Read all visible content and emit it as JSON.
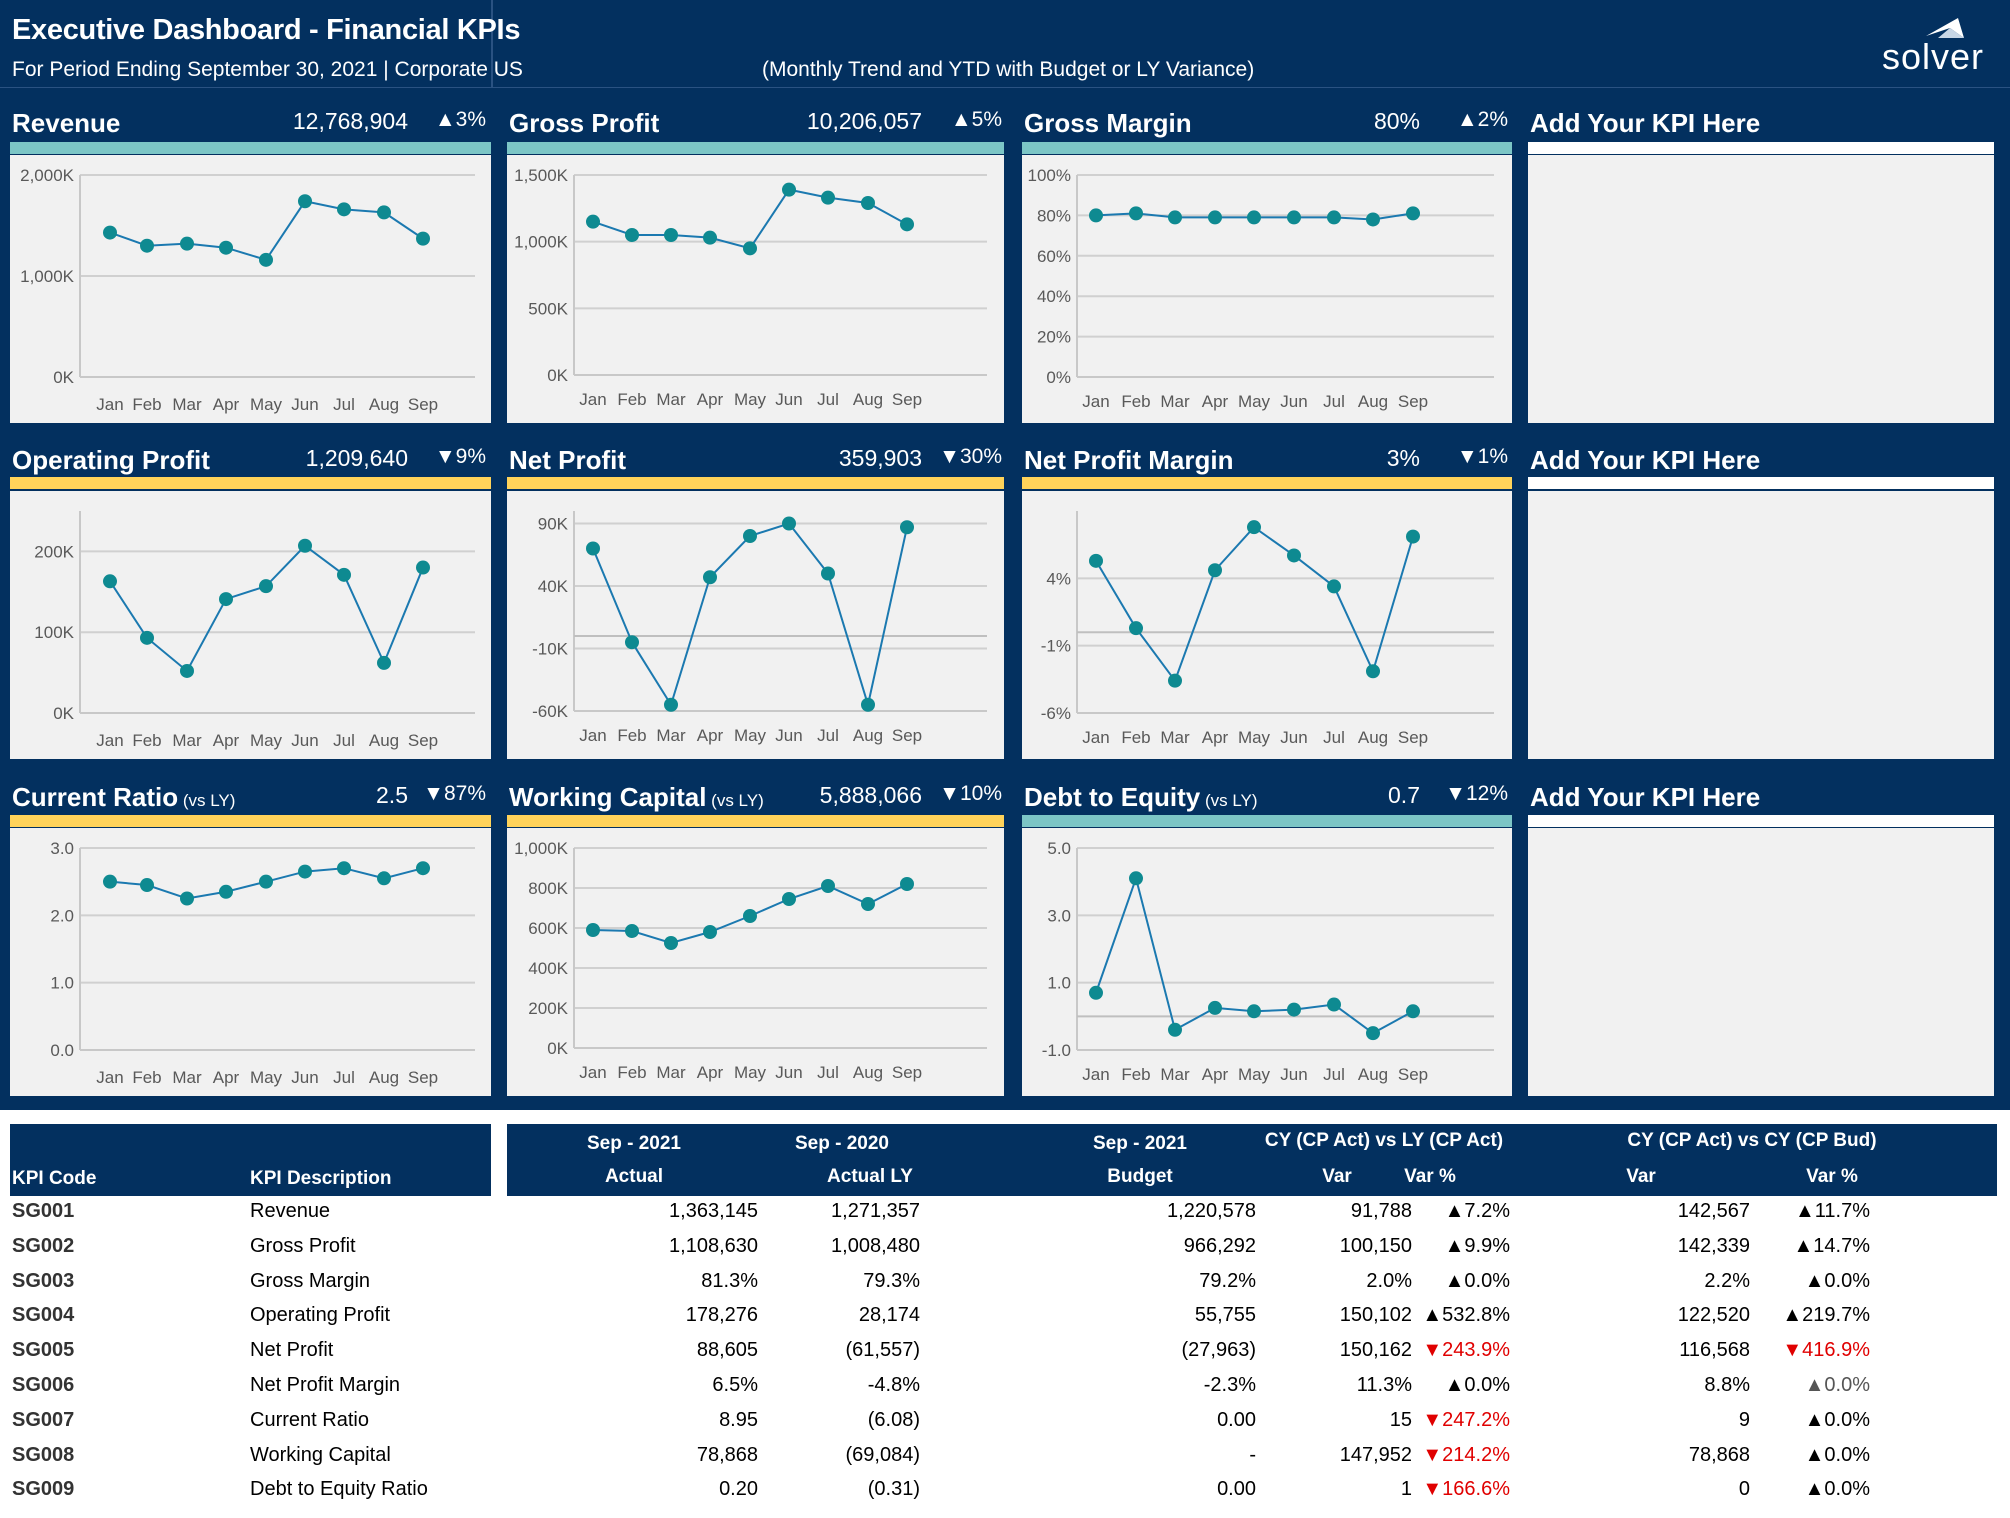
{
  "header": {
    "title": "Executive Dashboard - Financial KPIs",
    "subtitle": "For Period Ending September 30, 2021 | Corporate US",
    "subtitle2": "(Monthly Trend and YTD with Budget or LY Variance)",
    "logo": "solver"
  },
  "colors": {
    "navy": "#03305f",
    "teal_band": "#7cc6c6",
    "yellow_band": "#ffd35a",
    "series_line": "#1b79b0",
    "marker": "#0e8a91",
    "negative": "#e00000"
  },
  "kpis": [
    {
      "name": "Revenue",
      "suffix": "",
      "value": "12,768,904",
      "var": "▲3%"
    },
    {
      "name": "Gross Profit",
      "suffix": "",
      "value": "10,206,057",
      "var": "▲5%"
    },
    {
      "name": "Gross Margin",
      "suffix": "",
      "value": "80%",
      "var": "▲2%"
    },
    {
      "name": "Add Your KPI Here",
      "suffix": "",
      "value": "",
      "var": ""
    },
    {
      "name": "Operating Profit",
      "suffix": "",
      "value": "1,209,640",
      "var": "▼9%"
    },
    {
      "name": "Net Profit",
      "suffix": "",
      "value": "359,903",
      "var": "▼30%"
    },
    {
      "name": "Net Profit Margin",
      "suffix": "",
      "value": "3%",
      "var": "▼1%"
    },
    {
      "name": "Add Your KPI Here",
      "suffix": "",
      "value": "",
      "var": ""
    },
    {
      "name": "Current Ratio",
      "suffix": "(vs LY)",
      "value": "2.5",
      "var": "▼87%"
    },
    {
      "name": "Working Capital",
      "suffix": "(vs LY)",
      "value": "5,888,066",
      "var": "▼10%"
    },
    {
      "name": "Debt to Equity",
      "suffix": "(vs LY)",
      "value": "0.7",
      "var": "▼12%"
    },
    {
      "name": "Add Your KPI Here",
      "suffix": "",
      "value": "",
      "var": ""
    }
  ],
  "chart_data": [
    {
      "type": "line",
      "title": "Revenue",
      "x": [
        "Jan",
        "Feb",
        "Mar",
        "Apr",
        "May",
        "Jun",
        "Jul",
        "Aug",
        "Sep"
      ],
      "values": [
        1430,
        1300,
        1320,
        1280,
        1160,
        1740,
        1660,
        1630,
        1370
      ],
      "ylim": [
        0,
        2000
      ],
      "yticks": [
        0,
        1000,
        2000
      ],
      "yticklabels": [
        "0K",
        "1,000K",
        "2,000K"
      ],
      "grid": true
    },
    {
      "type": "line",
      "title": "Gross Profit",
      "x": [
        "Jan",
        "Feb",
        "Mar",
        "Apr",
        "May",
        "Jun",
        "Jul",
        "Aug",
        "Sep"
      ],
      "values": [
        1150,
        1050,
        1050,
        1030,
        950,
        1390,
        1330,
        1290,
        1130
      ],
      "ylim": [
        0,
        1500
      ],
      "yticks": [
        0,
        500,
        1000,
        1500
      ],
      "yticklabels": [
        "0K",
        "500K",
        "1,000K",
        "1,500K"
      ],
      "grid": true
    },
    {
      "type": "line",
      "title": "Gross Margin",
      "x": [
        "Jan",
        "Feb",
        "Mar",
        "Apr",
        "May",
        "Jun",
        "Jul",
        "Aug",
        "Sep"
      ],
      "values": [
        80,
        81,
        79,
        79,
        79,
        79,
        79,
        78,
        81
      ],
      "ylim": [
        0,
        100
      ],
      "yticks": [
        0,
        20,
        40,
        60,
        80,
        100
      ],
      "yticklabels": [
        "0%",
        "20%",
        "40%",
        "60%",
        "80%",
        "100%"
      ],
      "grid": true
    },
    {
      "type": "line",
      "title": "Operating Profit",
      "x": [
        "Jan",
        "Feb",
        "Mar",
        "Apr",
        "May",
        "Jun",
        "Jul",
        "Aug",
        "Sep"
      ],
      "values": [
        163,
        93,
        52,
        141,
        157,
        207,
        171,
        62,
        180
      ],
      "ylim": [
        0,
        250
      ],
      "yticks": [
        0,
        100,
        200
      ],
      "yticklabels": [
        "0K",
        "100K",
        "200K"
      ],
      "grid": true
    },
    {
      "type": "line",
      "title": "Net Profit",
      "x": [
        "Jan",
        "Feb",
        "Mar",
        "Apr",
        "May",
        "Jun",
        "Jul",
        "Aug",
        "Sep"
      ],
      "values": [
        70,
        -5,
        -55,
        47,
        80,
        90,
        50,
        -55,
        87
      ],
      "ylim": [
        -60,
        100
      ],
      "yticks": [
        -60,
        -10,
        40,
        90
      ],
      "yticklabels": [
        "-60K",
        "-10K",
        "40K",
        "90K"
      ],
      "zero": 0,
      "grid": true
    },
    {
      "type": "line",
      "title": "Net Profit Margin",
      "x": [
        "Jan",
        "Feb",
        "Mar",
        "Apr",
        "May",
        "Jun",
        "Jul",
        "Aug",
        "Sep"
      ],
      "values": [
        5.3,
        0.3,
        -3.6,
        4.6,
        7.8,
        5.7,
        3.4,
        -2.9,
        7.1
      ],
      "ylim": [
        -6,
        9
      ],
      "yticks": [
        -6,
        -1,
        4
      ],
      "yticklabels": [
        "-6%",
        "-1%",
        "4%"
      ],
      "zero": 0,
      "grid": true
    },
    {
      "type": "line",
      "title": "Current Ratio",
      "x": [
        "Jan",
        "Feb",
        "Mar",
        "Apr",
        "May",
        "Jun",
        "Jul",
        "Aug",
        "Sep"
      ],
      "values": [
        2.5,
        2.45,
        2.25,
        2.35,
        2.5,
        2.65,
        2.7,
        2.55,
        2.7
      ],
      "ylim": [
        0,
        3
      ],
      "yticks": [
        0,
        1,
        2,
        3
      ],
      "yticklabels": [
        "0.0",
        "1.0",
        "2.0",
        "3.0"
      ],
      "grid": true
    },
    {
      "type": "line",
      "title": "Working Capital",
      "x": [
        "Jan",
        "Feb",
        "Mar",
        "Apr",
        "May",
        "Jun",
        "Jul",
        "Aug",
        "Sep"
      ],
      "values": [
        590,
        585,
        525,
        580,
        660,
        745,
        810,
        720,
        820
      ],
      "ylim": [
        0,
        1000
      ],
      "yticks": [
        0,
        200,
        400,
        600,
        800,
        1000
      ],
      "yticklabels": [
        "0K",
        "200K",
        "400K",
        "600K",
        "800K",
        "1,000K"
      ],
      "grid": true
    },
    {
      "type": "line",
      "title": "Debt to Equity",
      "x": [
        "Jan",
        "Feb",
        "Mar",
        "Apr",
        "May",
        "Jun",
        "Jul",
        "Aug",
        "Sep"
      ],
      "values": [
        0.7,
        4.1,
        -0.4,
        0.25,
        0.15,
        0.2,
        0.35,
        -0.5,
        0.15
      ],
      "ylim": [
        -1,
        5
      ],
      "yticks": [
        -1,
        1,
        3,
        5
      ],
      "yticklabels": [
        "-1.0",
        "1.0",
        "3.0",
        "5.0"
      ],
      "zero": 0,
      "grid": true
    }
  ],
  "table": {
    "headers": {
      "kpi_code": "KPI Code",
      "kpi_desc": "KPI Description",
      "cy_period": "Sep - 2021",
      "actual": "Actual",
      "ly_period": "Sep - 2020",
      "actual_ly": "Actual LY",
      "bud_period": "Sep - 2021",
      "budget": "Budget",
      "grp1": "CY (CP Act) vs LY (CP Act)",
      "var1": "Var",
      "varp1": "Var %",
      "grp2": "CY (CP Act) vs CY (CP Bud)",
      "var2": "Var",
      "varp2": "Var %"
    },
    "rows": [
      {
        "code": "SG001",
        "desc": "Revenue",
        "actual": "1,363,145",
        "ly": "1,271,357",
        "budget": "1,220,578",
        "var1": "91,788",
        "varp1": "▲7.2%",
        "dir1": "up",
        "var2": "142,567",
        "varp2": "▲11.7%",
        "dir2": "up"
      },
      {
        "code": "SG002",
        "desc": "Gross Profit",
        "actual": "1,108,630",
        "ly": "1,008,480",
        "budget": "966,292",
        "var1": "100,150",
        "varp1": "▲9.9%",
        "dir1": "up",
        "var2": "142,339",
        "varp2": "▲14.7%",
        "dir2": "up"
      },
      {
        "code": "SG003",
        "desc": "Gross Margin",
        "actual": "81.3%",
        "ly": "79.3%",
        "budget": "79.2%",
        "var1": "2.0%",
        "varp1": "▲0.0%",
        "dir1": "up",
        "var2": "2.2%",
        "varp2": "▲0.0%",
        "dir2": "up"
      },
      {
        "code": "SG004",
        "desc": "Operating Profit",
        "actual": "178,276",
        "ly": "28,174",
        "budget": "55,755",
        "var1": "150,102",
        "varp1": "▲532.8%",
        "dir1": "up",
        "var2": "122,520",
        "varp2": "▲219.7%",
        "dir2": "up"
      },
      {
        "code": "SG005",
        "desc": "Net Profit",
        "actual": "88,605",
        "ly": "(61,557)",
        "budget": "(27,963)",
        "var1": "150,162",
        "varp1": "▼243.9%",
        "dir1": "down",
        "var2": "116,568",
        "varp2": "▼416.9%",
        "dir2": "down"
      },
      {
        "code": "SG006",
        "desc": "Net Profit Margin",
        "actual": "6.5%",
        "ly": "-4.8%",
        "budget": "-2.3%",
        "var1": "11.3%",
        "varp1": "▲0.0%",
        "dir1": "up",
        "var2": "8.8%",
        "varp2": "▲0.0%",
        "dir2": "grey"
      },
      {
        "code": "SG007",
        "desc": "Current Ratio",
        "actual": "8.95",
        "ly": "(6.08)",
        "budget": "0.00",
        "var1": "15",
        "varp1": "▼247.2%",
        "dir1": "down",
        "var2": "9",
        "varp2": "▲0.0%",
        "dir2": "up"
      },
      {
        "code": "SG008",
        "desc": "Working Capital",
        "actual": "78,868",
        "ly": "(69,084)",
        "budget": "-",
        "var1": "147,952",
        "varp1": "▼214.2%",
        "dir1": "down",
        "var2": "78,868",
        "varp2": "▲0.0%",
        "dir2": "up"
      },
      {
        "code": "SG009",
        "desc": "Debt to Equity Ratio",
        "actual": "0.20",
        "ly": "(0.31)",
        "budget": "0.00",
        "var1": "1",
        "varp1": "▼166.6%",
        "dir1": "down",
        "var2": "0",
        "varp2": "▲0.0%",
        "dir2": "up"
      }
    ]
  }
}
